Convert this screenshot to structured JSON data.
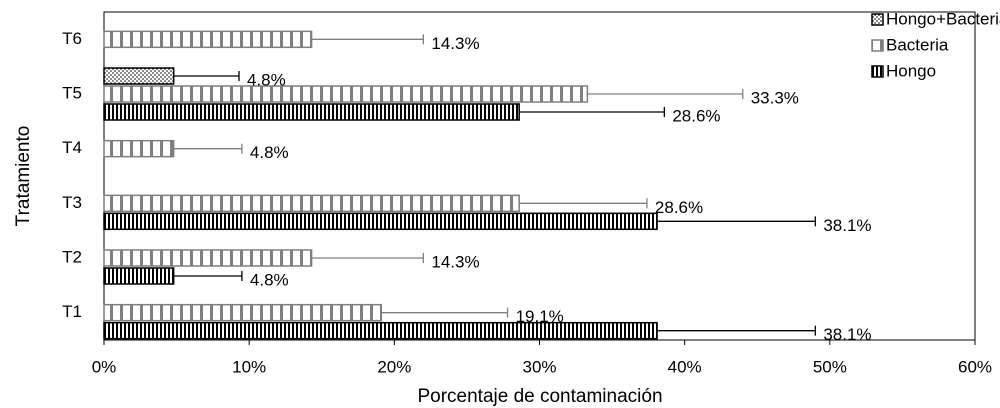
{
  "chart_data": {
    "type": "bar",
    "orientation": "horizontal",
    "x_label": "Porcentaje de contaminación",
    "y_label": "Tratamiento",
    "categories": [
      "T1",
      "T2",
      "T3",
      "T4",
      "T5",
      "T6"
    ],
    "series": [
      {
        "name": "Hongo",
        "color": "#000000",
        "values": [
          38.1,
          4.8,
          38.1,
          null,
          28.6,
          null
        ],
        "errors": [
          10.9,
          4.7,
          10.9,
          null,
          10.0,
          null
        ],
        "value_labels": [
          "38.1%",
          "4.8%",
          "38.1%",
          null,
          "28.6%",
          null
        ]
      },
      {
        "name": "Bacteria",
        "color": "#7f7f7f",
        "values": [
          19.1,
          14.3,
          28.6,
          4.8,
          33.3,
          14.3
        ],
        "errors": [
          8.7,
          7.7,
          8.8,
          4.7,
          10.7,
          7.7
        ],
        "value_labels": [
          "19.1%",
          "14.3%",
          "28.6%",
          "4.8%",
          "33.3%",
          "14.3%"
        ]
      },
      {
        "name": "Hongo+Bacteria",
        "color": "#000000",
        "values": [
          null,
          null,
          null,
          null,
          4.8,
          null
        ],
        "errors": [
          null,
          null,
          null,
          null,
          4.5,
          null
        ],
        "value_labels": [
          null,
          null,
          null,
          null,
          "4.8%",
          null
        ]
      }
    ],
    "xlim": [
      0,
      60
    ],
    "xticks": [
      {
        "value": 0,
        "label": "0%"
      },
      {
        "value": 10,
        "label": "10%"
      },
      {
        "value": 20,
        "label": "20%"
      },
      {
        "value": 30,
        "label": "30%"
      },
      {
        "value": 40,
        "label": "40%"
      },
      {
        "value": 50,
        "label": "50%"
      },
      {
        "value": 60,
        "label": "60%"
      }
    ],
    "legend": "top-right"
  }
}
